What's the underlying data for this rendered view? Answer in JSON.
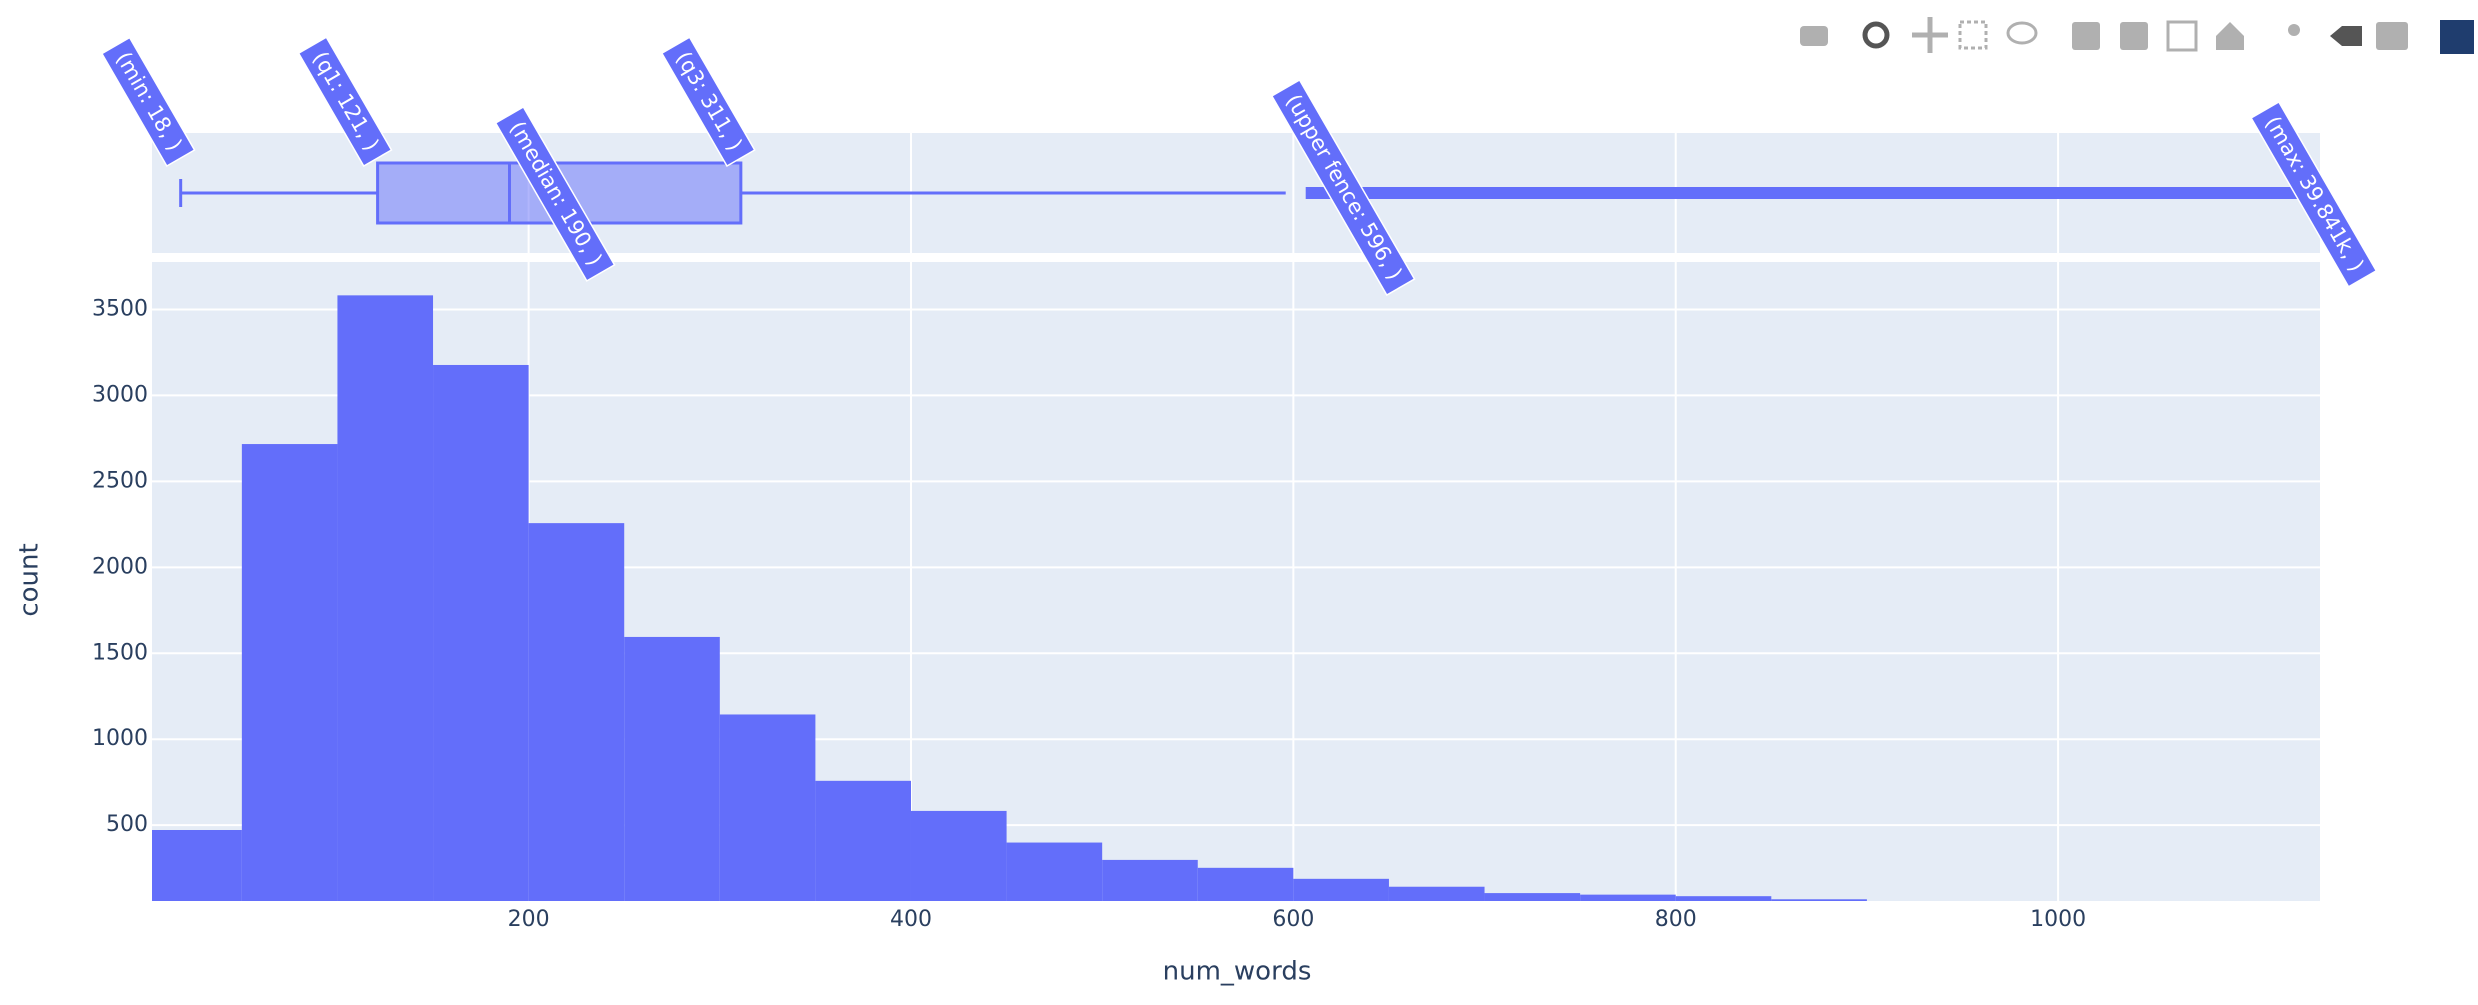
{
  "chart_data": {
    "type": "histogram",
    "x_title": "num_words",
    "y_title": "count",
    "bins": [
      0,
      50,
      100,
      150,
      200,
      250,
      300,
      350,
      400,
      450,
      500,
      550,
      600,
      650,
      700,
      750,
      800,
      850,
      900
    ],
    "values": [
      472,
      2717,
      3582,
      3177,
      2257,
      1595,
      1144,
      758,
      583,
      399,
      298,
      252,
      188,
      142,
      105,
      96,
      87,
      69
    ],
    "color": "#636efa",
    "xlim": [
      3,
      1137
    ],
    "xticks": [
      200,
      400,
      600,
      800,
      1000
    ],
    "ylim": [
      59,
      3776
    ],
    "yticks": [
      500,
      1000,
      1500,
      2000,
      2500,
      3000,
      3500
    ],
    "grid": true,
    "box": {
      "min": 18,
      "q1": 121,
      "median": 190,
      "q3": 311,
      "upperfence": 596,
      "max": 39841,
      "labels": {
        "min": "(min: 18, )",
        "q1": "(q1: 121, )",
        "median": "(median: 190, )",
        "q3": "(q3: 311, )",
        "upperfence": "(upper fence: 596, )",
        "max": "(max: 39.841k, )"
      }
    }
  }
}
